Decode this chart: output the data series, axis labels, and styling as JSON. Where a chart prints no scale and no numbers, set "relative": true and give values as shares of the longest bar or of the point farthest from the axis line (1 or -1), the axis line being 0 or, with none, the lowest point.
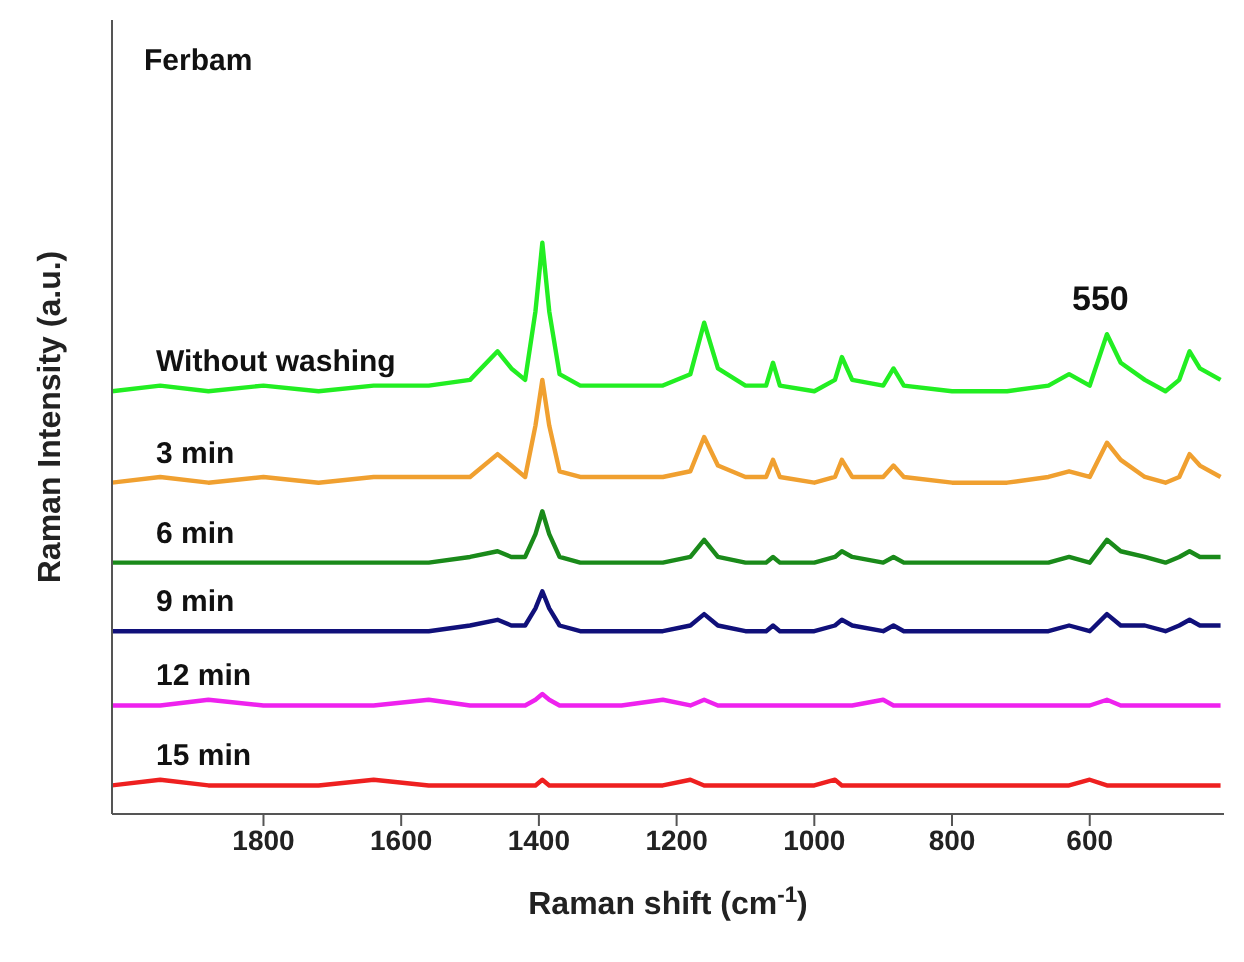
{
  "chart_data": {
    "type": "line",
    "title": "Ferbam",
    "xlabel": "Raman shift (cm$^{-1}$)",
    "ylabel": "Raman Intensity (a.u.)",
    "relative": true,
    "xlim": [
      2020,
      405
    ],
    "xticks": [
      1800,
      1600,
      1400,
      1200,
      1000,
      800,
      600
    ],
    "grid": false,
    "legend": false,
    "marker": "none",
    "line_style": "solid",
    "x": [
      2020,
      1950,
      1880,
      1800,
      1720,
      1640,
      1560,
      1500,
      1460,
      1440,
      1420,
      1405,
      1395,
      1385,
      1370,
      1340,
      1280,
      1220,
      1180,
      1160,
      1140,
      1100,
      1070,
      1060,
      1050,
      1000,
      970,
      960,
      945,
      900,
      885,
      870,
      800,
      720,
      660,
      630,
      600,
      575,
      555,
      520,
      490,
      470,
      455,
      440,
      410
    ],
    "annotations": [
      "550"
    ],
    "series": [
      {
        "name": "Without washing",
        "color": "#22ee22",
        "values": [
          0.74,
          0.75,
          0.74,
          0.75,
          0.74,
          0.75,
          0.75,
          0.76,
          0.81,
          0.78,
          0.76,
          0.88,
          1.0,
          0.88,
          0.77,
          0.75,
          0.75,
          0.75,
          0.77,
          0.86,
          0.78,
          0.75,
          0.75,
          0.79,
          0.75,
          0.74,
          0.76,
          0.8,
          0.76,
          0.75,
          0.78,
          0.75,
          0.74,
          0.74,
          0.75,
          0.77,
          0.75,
          0.84,
          0.79,
          0.76,
          0.74,
          0.76,
          0.81,
          0.78,
          0.76
        ]
      },
      {
        "name": "3 min",
        "color": "#f0a030",
        "values": [
          0.58,
          0.59,
          0.58,
          0.59,
          0.58,
          0.59,
          0.59,
          0.59,
          0.63,
          0.61,
          0.59,
          0.68,
          0.76,
          0.68,
          0.6,
          0.59,
          0.59,
          0.59,
          0.6,
          0.66,
          0.61,
          0.59,
          0.59,
          0.62,
          0.59,
          0.58,
          0.59,
          0.62,
          0.59,
          0.59,
          0.61,
          0.59,
          0.58,
          0.58,
          0.59,
          0.6,
          0.59,
          0.65,
          0.62,
          0.59,
          0.58,
          0.59,
          0.63,
          0.61,
          0.59
        ]
      },
      {
        "name": "6 min",
        "color": "#1a8a1a",
        "values": [
          0.44,
          0.44,
          0.44,
          0.44,
          0.44,
          0.44,
          0.44,
          0.45,
          0.46,
          0.45,
          0.45,
          0.49,
          0.53,
          0.49,
          0.45,
          0.44,
          0.44,
          0.44,
          0.45,
          0.48,
          0.45,
          0.44,
          0.44,
          0.45,
          0.44,
          0.44,
          0.45,
          0.46,
          0.45,
          0.44,
          0.45,
          0.44,
          0.44,
          0.44,
          0.44,
          0.45,
          0.44,
          0.48,
          0.46,
          0.45,
          0.44,
          0.45,
          0.46,
          0.45,
          0.45
        ]
      },
      {
        "name": "9 min",
        "color": "#10107a",
        "values": [
          0.32,
          0.32,
          0.32,
          0.32,
          0.32,
          0.32,
          0.32,
          0.33,
          0.34,
          0.33,
          0.33,
          0.36,
          0.39,
          0.36,
          0.33,
          0.32,
          0.32,
          0.32,
          0.33,
          0.35,
          0.33,
          0.32,
          0.32,
          0.33,
          0.32,
          0.32,
          0.33,
          0.34,
          0.33,
          0.32,
          0.33,
          0.32,
          0.32,
          0.32,
          0.32,
          0.33,
          0.32,
          0.35,
          0.33,
          0.33,
          0.32,
          0.33,
          0.34,
          0.33,
          0.33
        ]
      },
      {
        "name": "12 min",
        "color": "#ee22ee",
        "values": [
          0.19,
          0.19,
          0.2,
          0.19,
          0.19,
          0.19,
          0.2,
          0.19,
          0.19,
          0.19,
          0.19,
          0.2,
          0.21,
          0.2,
          0.19,
          0.19,
          0.19,
          0.2,
          0.19,
          0.2,
          0.19,
          0.19,
          0.19,
          0.19,
          0.19,
          0.19,
          0.19,
          0.19,
          0.19,
          0.2,
          0.19,
          0.19,
          0.19,
          0.19,
          0.19,
          0.19,
          0.19,
          0.2,
          0.19,
          0.19,
          0.19,
          0.19,
          0.19,
          0.19,
          0.19
        ]
      },
      {
        "name": "15 min",
        "color": "#ee2020",
        "values": [
          0.05,
          0.06,
          0.05,
          0.05,
          0.05,
          0.06,
          0.05,
          0.05,
          0.05,
          0.05,
          0.05,
          0.05,
          0.06,
          0.05,
          0.05,
          0.05,
          0.05,
          0.05,
          0.06,
          0.05,
          0.05,
          0.05,
          0.05,
          0.05,
          0.05,
          0.05,
          0.06,
          0.05,
          0.05,
          0.05,
          0.05,
          0.05,
          0.05,
          0.05,
          0.05,
          0.05,
          0.06,
          0.05,
          0.05,
          0.05,
          0.05,
          0.05,
          0.05,
          0.05,
          0.05
        ]
      }
    ]
  }
}
